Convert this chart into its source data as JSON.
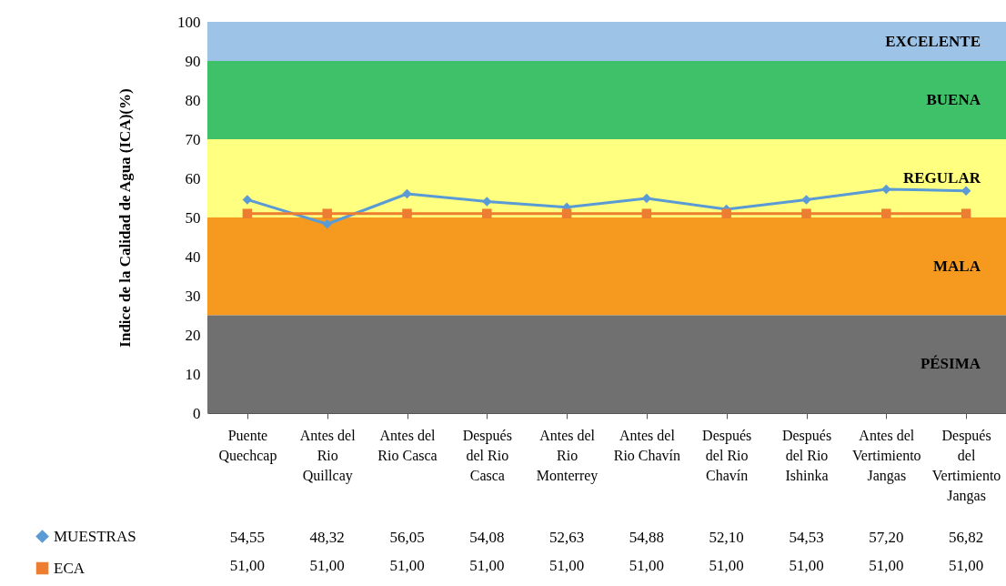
{
  "chart_data": {
    "type": "line",
    "ylabel": "Indice de la Calidad de Agua (ICA)(%)",
    "categories": [
      "Puente Quechcap",
      "Antes del Rio Quillcay",
      "Antes del Rio Casca",
      "Después del Rio Casca",
      "Antes del Rio Monterrey",
      "Antes del Rio Chavín",
      "Después del Rio Chavín",
      "Después del Rio Ishinka",
      "Antes del Vertimiento Jangas",
      "Después del Vertimiento Jangas"
    ],
    "series": [
      {
        "name": "MUESTRAS",
        "color": "#5b9bd5",
        "marker": "diamond",
        "values": [
          54.55,
          48.32,
          56.05,
          54.08,
          52.63,
          54.88,
          52.1,
          54.53,
          57.2,
          56.82
        ],
        "value_labels": [
          "54,55",
          "48,32",
          "56,05",
          "54,08",
          "52,63",
          "54,88",
          "52,10",
          "54,53",
          "57,20",
          "56,82"
        ]
      },
      {
        "name": "ECA",
        "color": "#ed7d31",
        "marker": "square",
        "values": [
          51,
          51,
          51,
          51,
          51,
          51,
          51,
          51,
          51,
          51
        ],
        "value_labels": [
          "51,00",
          "51,00",
          "51,00",
          "51,00",
          "51,00",
          "51,00",
          "51,00",
          "51,00",
          "51,00",
          "51,00"
        ]
      }
    ],
    "ylim": [
      0,
      100
    ],
    "yticks": [
      0,
      10,
      20,
      30,
      40,
      50,
      60,
      70,
      80,
      90,
      100
    ],
    "bands": [
      {
        "axis": "y",
        "from": 90,
        "to": 100,
        "label": "EXCELENTE",
        "color": "#9dc3e6"
      },
      {
        "axis": "y",
        "from": 70,
        "to": 90,
        "label": "BUENA",
        "color": "#3fc16a"
      },
      {
        "axis": "y",
        "from": 50,
        "to": 70,
        "label": "REGULAR",
        "color": "#ffff80"
      },
      {
        "axis": "y",
        "from": 25,
        "to": 50,
        "label": "MALA",
        "color": "#f59a1f"
      },
      {
        "axis": "y",
        "from": 0,
        "to": 25,
        "label": "PÉSIMA",
        "color": "#707070"
      }
    ],
    "grid": false,
    "legend": "bottom left"
  }
}
